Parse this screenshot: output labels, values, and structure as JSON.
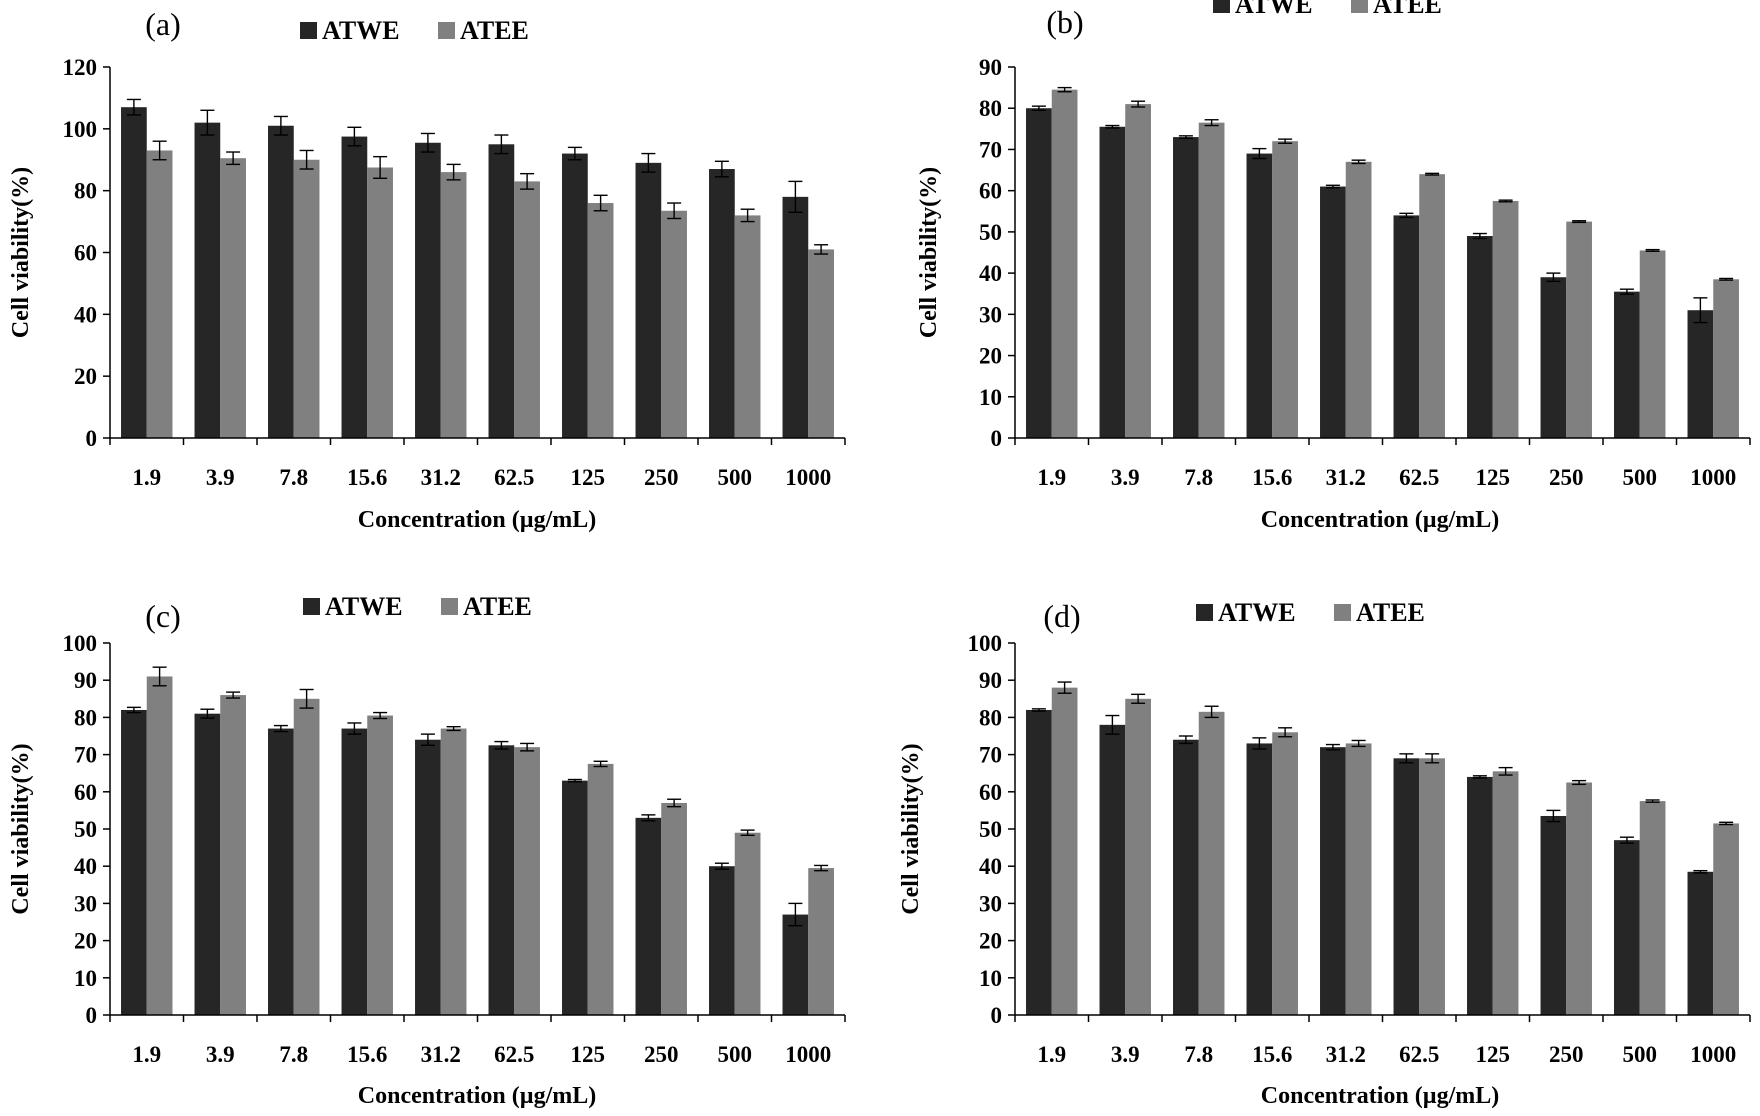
{
  "chart_data": [
    {
      "type": "bar",
      "panel_label": "(a)",
      "categories": [
        "1.9",
        "3.9",
        "7.8",
        "15.6",
        "31.2",
        "62.5",
        "125",
        "250",
        "500",
        "1000"
      ],
      "series": [
        {
          "name": "ATWE",
          "color": "#262626",
          "values": [
            107,
            102,
            101,
            97.5,
            95.5,
            95,
            92,
            89,
            87,
            78
          ],
          "errors": [
            2.5,
            4,
            3,
            3,
            3,
            3,
            2,
            3,
            2.5,
            5
          ]
        },
        {
          "name": "ATEE",
          "color": "#808080",
          "values": [
            93,
            90.5,
            90,
            87.5,
            86,
            83,
            76,
            73.5,
            72,
            61
          ],
          "errors": [
            3,
            2,
            3,
            3.5,
            2.5,
            2.5,
            2.5,
            2.5,
            2,
            1.5
          ]
        }
      ],
      "xlabel": "Concentration (µg/mL)",
      "ylabel": "Cell viability(%)",
      "ylim": [
        0,
        120
      ],
      "yticks": [
        "0",
        "20",
        "40",
        "60",
        "80",
        "100",
        "120"
      ],
      "grid": false,
      "legend": "top-center"
    },
    {
      "type": "bar",
      "panel_label": "(b)",
      "categories": [
        "1.9",
        "3.9",
        "7.8",
        "15.6",
        "31.2",
        "62.5",
        "125",
        "250",
        "500",
        "1000"
      ],
      "series": [
        {
          "name": "ATWE",
          "color": "#262626",
          "values": [
            80,
            75.5,
            73,
            69,
            61,
            54,
            49,
            39,
            35.5,
            31
          ],
          "errors": [
            0.5,
            0.3,
            0.3,
            1.2,
            0.3,
            0.5,
            0.6,
            1,
            0.6,
            3
          ]
        },
        {
          "name": "ATEE",
          "color": "#808080",
          "values": [
            84.5,
            81,
            76.5,
            72,
            67,
            64,
            57.5,
            52.5,
            45.5,
            38.5
          ],
          "errors": [
            0.5,
            0.7,
            0.7,
            0.5,
            0.4,
            0.2,
            0.2,
            0.2,
            0.2,
            0.2
          ]
        }
      ],
      "xlabel": "Concentration (µg/mL)",
      "ylabel": "Cell viability(%)",
      "ylim": [
        0,
        90
      ],
      "yticks": [
        "0",
        "10",
        "20",
        "30",
        "40",
        "50",
        "60",
        "70",
        "80",
        "90"
      ],
      "grid": false,
      "legend": "top-center"
    },
    {
      "type": "bar",
      "panel_label": "(c)",
      "categories": [
        "1.9",
        "3.9",
        "7.8",
        "15.6",
        "31.2",
        "62.5",
        "125",
        "250",
        "500",
        "1000"
      ],
      "series": [
        {
          "name": "ATWE",
          "color": "#262626",
          "values": [
            82,
            81,
            77,
            77,
            74,
            72.5,
            63,
            53,
            40,
            27
          ],
          "errors": [
            0.7,
            1.2,
            0.8,
            1.5,
            1.5,
            1,
            0.3,
            0.8,
            0.8,
            3
          ]
        },
        {
          "name": "ATEE",
          "color": "#808080",
          "values": [
            91,
            86,
            85,
            80.5,
            77,
            72,
            67.5,
            57,
            49,
            39.5
          ],
          "errors": [
            2.5,
            0.8,
            2.5,
            0.8,
            0.5,
            1,
            0.7,
            1,
            0.7,
            0.7
          ]
        }
      ],
      "xlabel": "Concentration (µg/mL)",
      "ylabel": "Cell viability(%)",
      "ylim": [
        0,
        100
      ],
      "yticks": [
        "0",
        "10",
        "20",
        "30",
        "40",
        "50",
        "60",
        "70",
        "80",
        "90",
        "100"
      ],
      "grid": false,
      "legend": "top-center"
    },
    {
      "type": "bar",
      "panel_label": "(d)",
      "categories": [
        "1.9",
        "3.9",
        "7.8",
        "15.6",
        "31.2",
        "62.5",
        "125",
        "250",
        "500",
        "1000"
      ],
      "series": [
        {
          "name": "ATWE",
          "color": "#262626",
          "values": [
            82,
            78,
            74,
            73,
            72,
            69,
            64,
            53.5,
            47,
            38.5
          ],
          "errors": [
            0.3,
            2.5,
            1,
            1.5,
            0.7,
            1.2,
            0.3,
            1.5,
            0.8,
            0.3
          ]
        },
        {
          "name": "ATEE",
          "color": "#808080",
          "values": [
            88,
            85,
            81.5,
            76,
            73,
            69,
            65.5,
            62.5,
            57.5,
            51.5
          ],
          "errors": [
            1.5,
            1.2,
            1.5,
            1.2,
            0.8,
            1.2,
            1,
            0.5,
            0.3,
            0.3
          ]
        }
      ],
      "xlabel": "Concentration (µg/mL)",
      "ylabel": "Cell viability(%)",
      "ylim": [
        0,
        100
      ],
      "yticks": [
        "0",
        "10",
        "20",
        "30",
        "40",
        "50",
        "60",
        "70",
        "80",
        "90",
        "100"
      ],
      "grid": false,
      "legend": "top-center"
    }
  ]
}
